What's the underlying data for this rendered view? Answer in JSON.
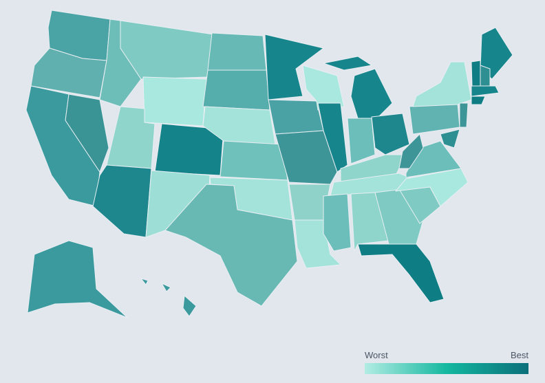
{
  "legend": {
    "low_label": "Worst",
    "high_label": "Best",
    "colors": [
      "#b2ece3",
      "#14b8a0",
      "#0b6f7a"
    ]
  }
}
